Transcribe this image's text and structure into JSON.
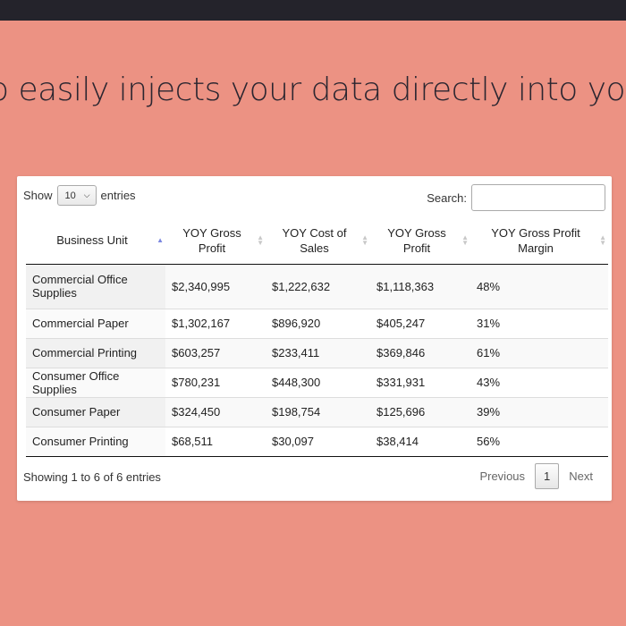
{
  "headline": "o easily injects your data directly into your w",
  "length": {
    "show_label": "Show",
    "selected": "10",
    "entries_label": "entries"
  },
  "search": {
    "label": "Search:",
    "value": ""
  },
  "columns": [
    "Business Unit",
    "YOY Gross Profit",
    "YOY Cost of Sales",
    "YOY Gross Profit",
    "YOY Gross Profit Margin"
  ],
  "rows": [
    [
      "Commercial Office Supplies",
      "$2,340,995",
      "$1,222,632",
      "$1,118,363",
      "48%"
    ],
    [
      "Commercial Paper",
      "$1,302,167",
      "$896,920",
      "$405,247",
      "31%"
    ],
    [
      "Commercial Printing",
      "$603,257",
      "$233,411",
      "$369,846",
      "61%"
    ],
    [
      "Consumer Office Supplies",
      "$780,231",
      "$448,300",
      "$331,931",
      "43%"
    ],
    [
      "Consumer Paper",
      "$324,450",
      "$198,754",
      "$125,696",
      "39%"
    ],
    [
      "Consumer Printing",
      "$68,511",
      "$30,097",
      "$38,414",
      "56%"
    ]
  ],
  "info": "Showing 1 to 6 of 6 entries",
  "pagination": {
    "previous": "Previous",
    "current": "1",
    "next": "Next"
  },
  "colors": {
    "background": "#ec9283",
    "topbar": "#24232b",
    "sort_active": "#7a86e0"
  }
}
